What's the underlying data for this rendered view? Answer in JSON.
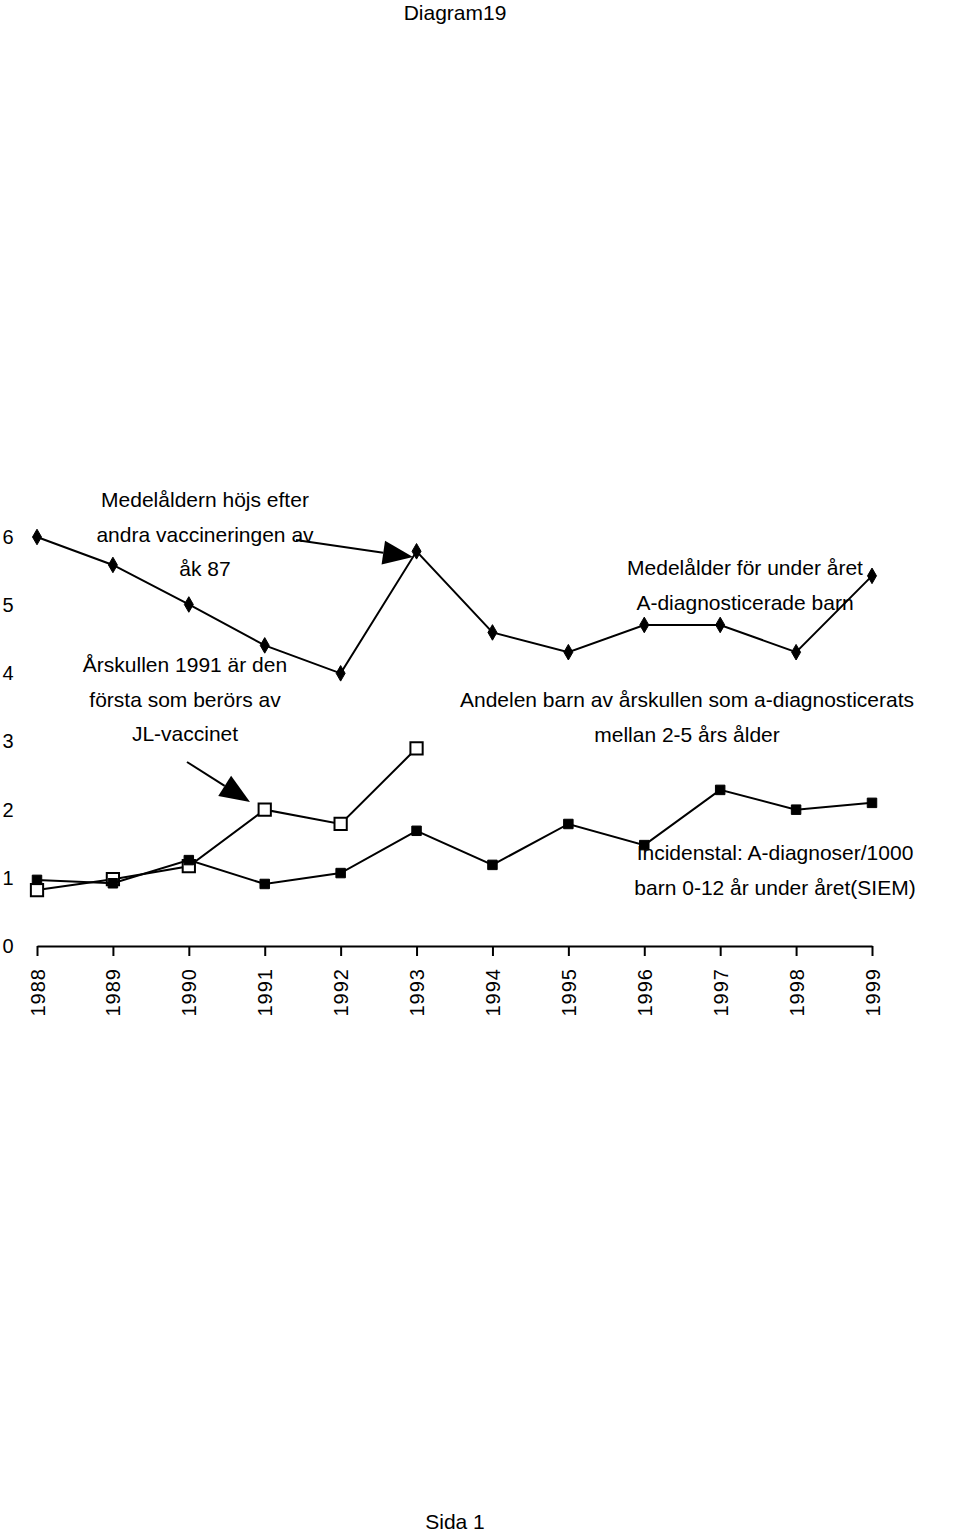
{
  "chart_data": {
    "type": "line",
    "title": "Diagram19",
    "footer": "Sida 1",
    "categories": [
      "1988",
      "1989",
      "1990",
      "1991",
      "1992",
      "1993",
      "1994",
      "1995",
      "1996",
      "1997",
      "1998",
      "1999"
    ],
    "ylim": [
      0,
      6
    ],
    "yticks": [
      0,
      1,
      2,
      3,
      4,
      5,
      6
    ],
    "grid": false,
    "series": [
      {
        "name": "Medelålder för under året\nA-diagnosticerade barn",
        "color": "#000000",
        "marker": "diamond",
        "line_style": "solid",
        "values": [
          6.0,
          5.59,
          5.01,
          4.41,
          4.0,
          5.79,
          4.6,
          4.31,
          4.71,
          4.71,
          4.31,
          5.43
        ]
      },
      {
        "name": "Andelen barn av årskullen som a-diagnosticerats\nmellan 2-5 års ålder",
        "color": "#000000",
        "marker": "square-open",
        "line_style": "solid",
        "values": [
          0.82,
          0.98,
          1.17,
          2.0,
          1.79,
          2.9,
          null,
          null,
          null,
          null,
          null,
          null
        ]
      },
      {
        "name": "Incidenstal: A-diagnoser/1000\nbarn 0-12 år under året(SIEM)",
        "color": "#000000",
        "marker": "square",
        "line_style": "solid",
        "values": [
          0.97,
          0.92,
          1.26,
          0.91,
          1.07,
          1.69,
          1.19,
          1.79,
          1.48,
          2.29,
          2.0,
          2.1
        ]
      }
    ],
    "annotations": [
      {
        "text": "Medelåldern höjs efter\nandra vaccineringen av\nåk 87"
      },
      {
        "text": "Årskullen 1991 är den\nförsta som berörs av\nJL-vaccinet"
      }
    ]
  }
}
